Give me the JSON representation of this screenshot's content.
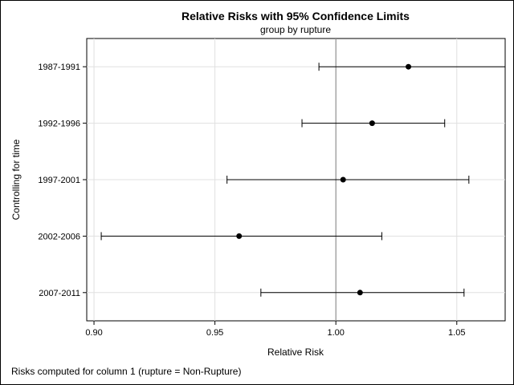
{
  "chart_data": {
    "type": "scatter",
    "title": "Relative Risks with 95% Confidence Limits",
    "subtitle": "group by rupture",
    "xlabel": "Relative Risk",
    "ylabel": "Controlling for time",
    "footnote": "Risks computed for column 1 (rupture = Non-Rupture)",
    "xlim": [
      0.897,
      1.07
    ],
    "xticks": [
      0.9,
      0.95,
      1.0,
      1.05
    ],
    "xtick_labels": [
      "0.90",
      "0.95",
      "1.00",
      "1.05"
    ],
    "reference_line": 1.0,
    "grid": true,
    "categories": [
      "1987-1991",
      "1992-1996",
      "1997-2001",
      "2002-2006",
      "2007-2011"
    ],
    "estimates": [
      1.03,
      1.015,
      1.003,
      0.96,
      1.01
    ],
    "lower": [
      0.993,
      0.986,
      0.955,
      0.903,
      0.969
    ],
    "upper": [
      1.07,
      1.045,
      1.055,
      1.019,
      1.053
    ],
    "colors": {
      "marker": "#000000",
      "grid": "#e0e0e0",
      "reference": "#808080"
    }
  }
}
